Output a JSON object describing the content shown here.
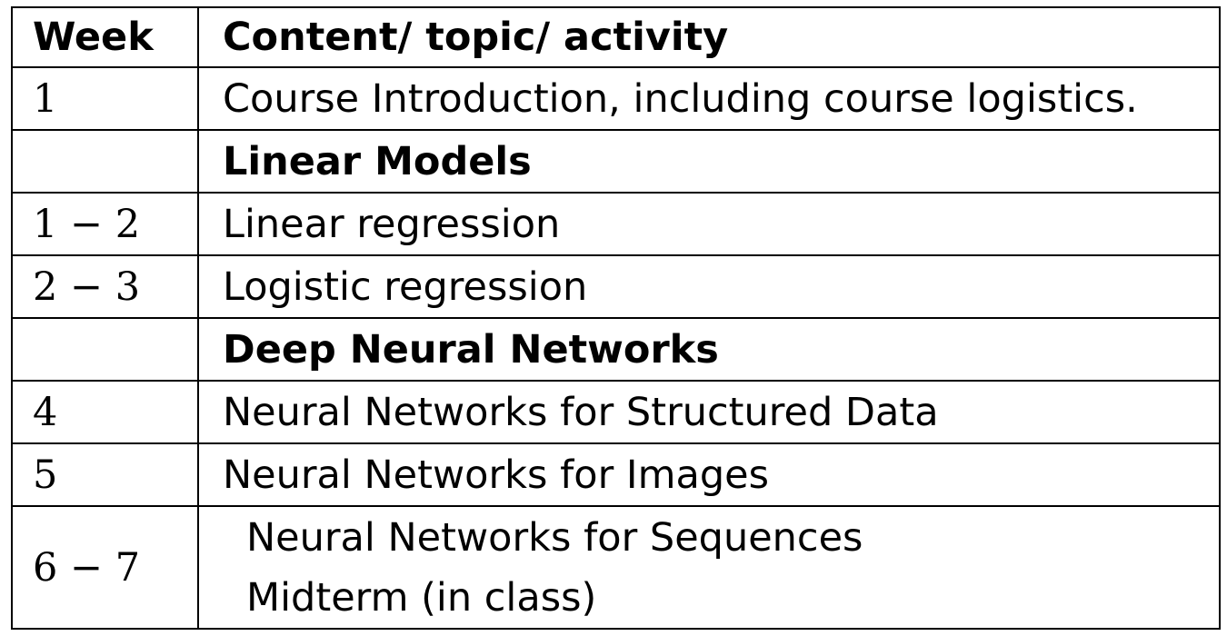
{
  "table": {
    "headers": {
      "week": "Week",
      "topic": "Content/ topic/ activity"
    },
    "rows": [
      {
        "week": "1",
        "topic": "Course Introduction, including course logistics."
      },
      {
        "week": "",
        "topic": "Linear Models"
      },
      {
        "week": "1 − 2",
        "topic": "Linear regression"
      },
      {
        "week": "2 − 3",
        "topic": "Logistic regression"
      },
      {
        "week": "",
        "topic": "Deep Neural Networks"
      },
      {
        "week": "4",
        "topic": "Neural Networks for Structured Data"
      },
      {
        "week": "5",
        "topic": "Neural Networks for Images"
      },
      {
        "week": "6 − 7",
        "topic_lines": [
          "Neural Networks for Sequences",
          "Midterm (in class)"
        ]
      }
    ]
  }
}
